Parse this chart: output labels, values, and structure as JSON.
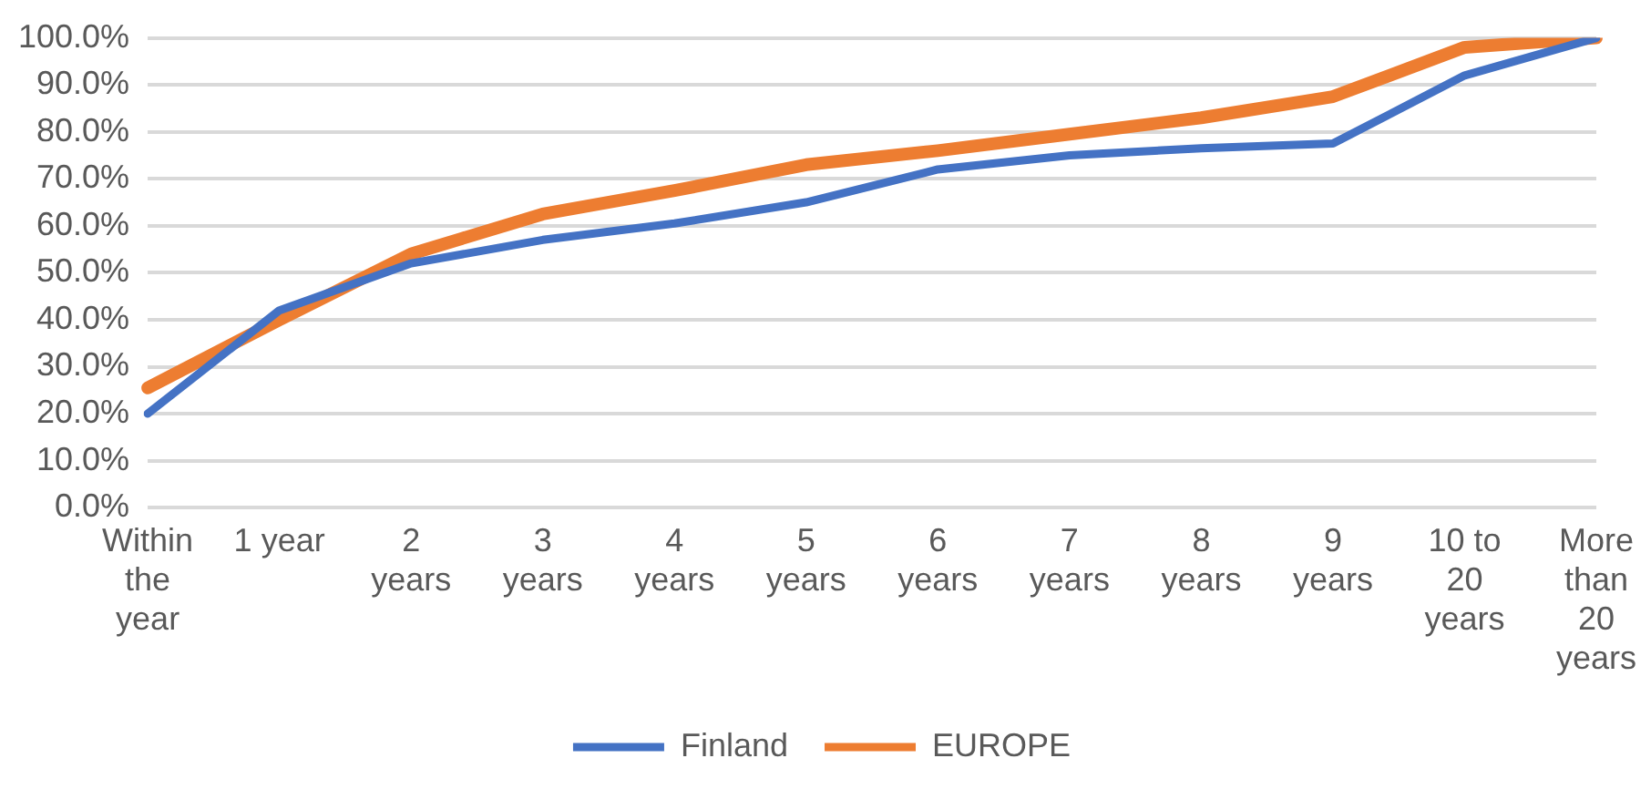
{
  "chart_data": {
    "type": "line",
    "categories": [
      "Within the year",
      "1 year",
      "2 years",
      "3 years",
      "4 years",
      "5 years",
      "6 years",
      "7 years",
      "8 years",
      "9 years",
      "10 to 20 years",
      "More than 20 years"
    ],
    "series": [
      {
        "name": "Finland",
        "color": "#4472c4",
        "values": [
          20,
          42,
          52,
          57,
          60.5,
          65,
          72,
          75,
          76.5,
          77.5,
          92,
          100
        ]
      },
      {
        "name": "EUROPE",
        "color": "#ed7d31",
        "values": [
          25.5,
          40,
          54,
          62.5,
          67.5,
          73,
          76,
          79.5,
          83,
          87.5,
          98,
          100
        ]
      }
    ],
    "ylim": [
      0,
      100
    ],
    "yticks": [
      {
        "value": 0,
        "label": "0.0%"
      },
      {
        "value": 10,
        "label": "10.0%"
      },
      {
        "value": 20,
        "label": "20.0%"
      },
      {
        "value": 30,
        "label": "30.0%"
      },
      {
        "value": 40,
        "label": "40.0%"
      },
      {
        "value": 50,
        "label": "50.0%"
      },
      {
        "value": 60,
        "label": "60.0%"
      },
      {
        "value": 70,
        "label": "70.0%"
      },
      {
        "value": 80,
        "label": "80.0%"
      },
      {
        "value": 90,
        "label": "90.0%"
      },
      {
        "value": 100,
        "label": "100.0%"
      }
    ],
    "grid": "y",
    "legend": "bottom",
    "marker": "none",
    "line_style": "solid"
  }
}
